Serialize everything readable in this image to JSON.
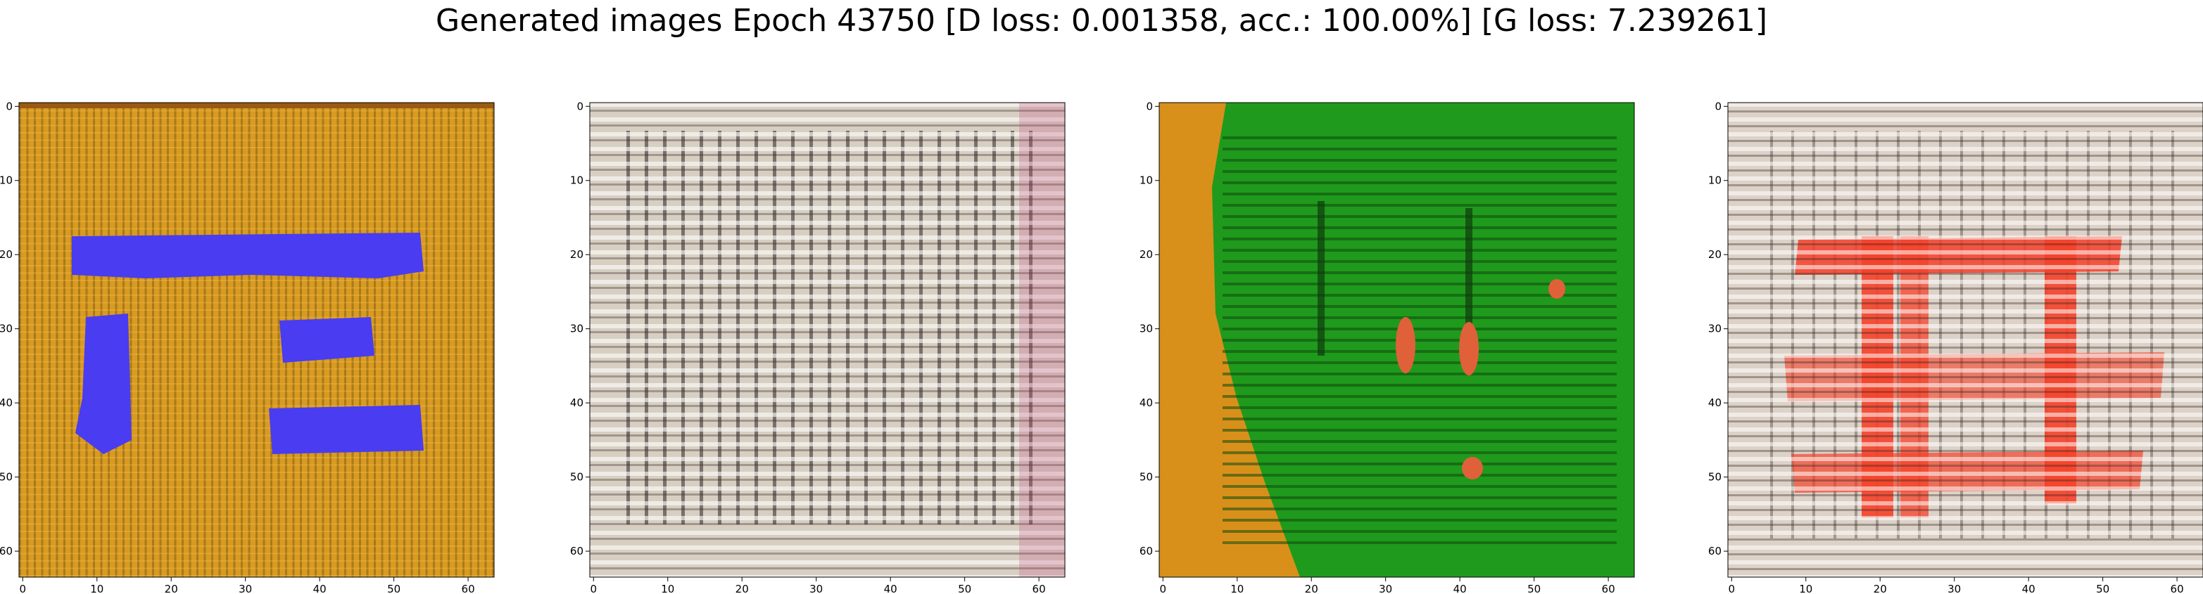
{
  "title": "Generated images Epoch 43750 [D loss: 0.001358, acc.: 100.00%] [G loss: 7.239261]",
  "panels": [
    {
      "id": "panel-1",
      "description_colors": {
        "background": "#d99a22",
        "blob": "#4a3cf0",
        "stripe": "#5a4a10"
      },
      "x_ticks": [
        "0",
        "10",
        "20",
        "30",
        "40",
        "50",
        "60"
      ],
      "y_ticks": [
        "0",
        "10",
        "20",
        "30",
        "40",
        "50",
        "60"
      ]
    },
    {
      "id": "panel-2",
      "description_colors": {
        "background": "#d8cfc3",
        "stripe": "#2a2320",
        "accent": "#c0497a"
      },
      "x_ticks": [
        "0",
        "10",
        "20",
        "30",
        "40",
        "50",
        "60"
      ],
      "y_ticks": [
        "0",
        "10",
        "20",
        "30",
        "40",
        "50",
        "60"
      ]
    },
    {
      "id": "panel-3",
      "description_colors": {
        "background": "#1f9a1c",
        "left_edge": "#d8901a",
        "stripe": "#0e4a0d",
        "spot": "#e0603a"
      },
      "x_ticks": [
        "0",
        "10",
        "20",
        "30",
        "40",
        "50",
        "60"
      ],
      "y_ticks": [
        "0",
        "10",
        "20",
        "30",
        "40",
        "50",
        "60"
      ]
    },
    {
      "id": "panel-4",
      "description_colors": {
        "background": "#ddd2c8",
        "blob": "#f5412a",
        "stripe": "#2a2320"
      },
      "x_ticks": [
        "0",
        "10",
        "20",
        "30",
        "40",
        "50",
        "60"
      ],
      "y_ticks": [
        "0",
        "10",
        "20",
        "30",
        "40",
        "50",
        "60"
      ]
    }
  ]
}
